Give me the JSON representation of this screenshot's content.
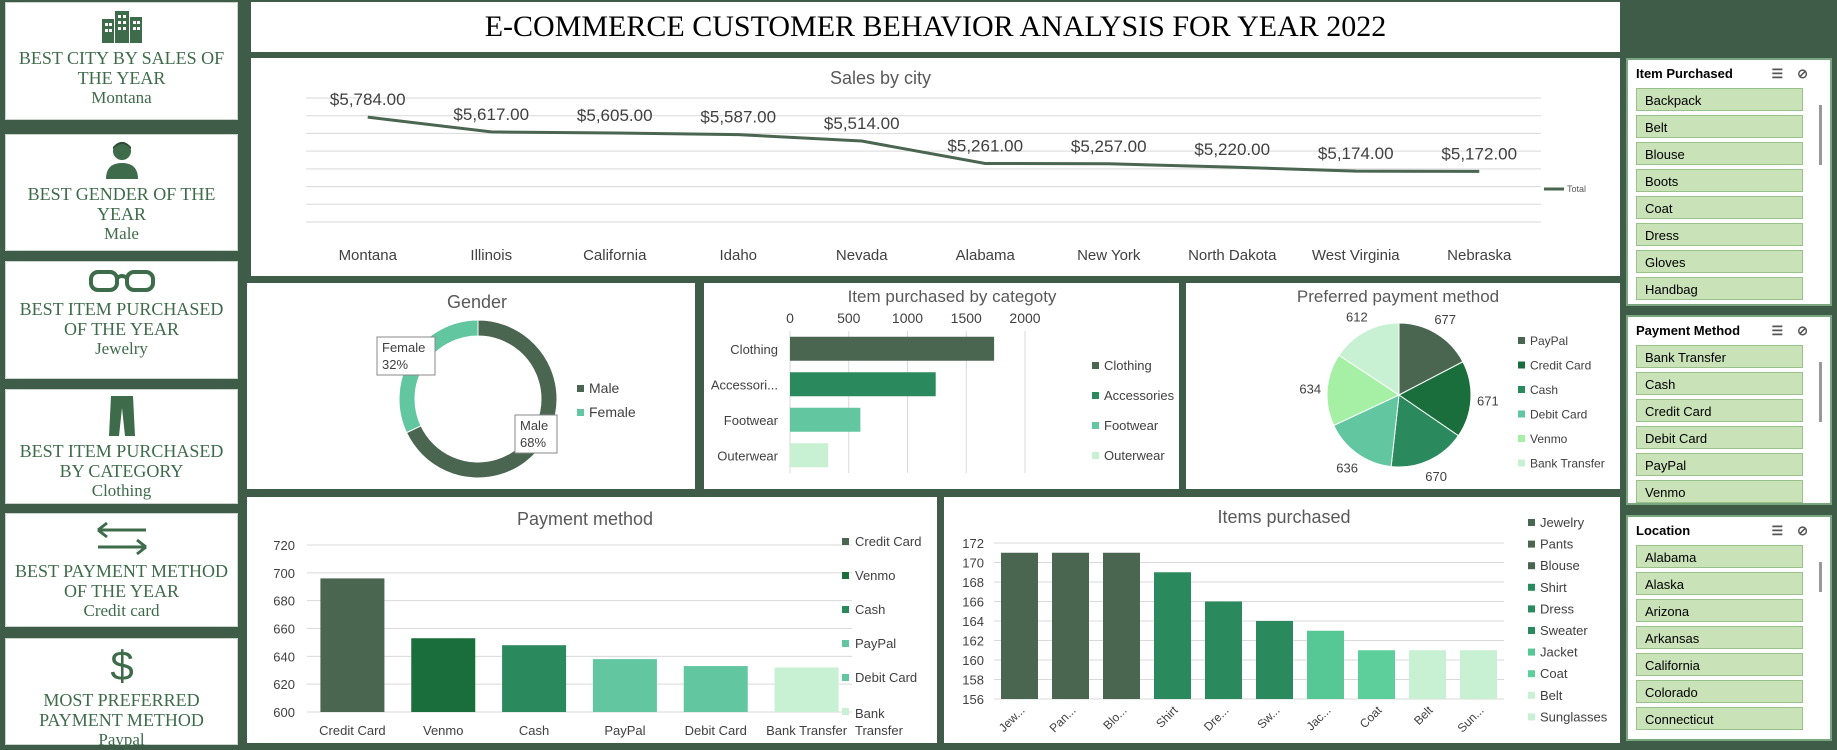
{
  "title": "E-COMMERCE CUSTOMER BEHAVIOR ANALYSIS FOR YEAR 2022",
  "kpis": [
    {
      "label": "BEST CITY BY SALES OF THE YEAR",
      "value": "Montana",
      "icon": "city-buildings-icon"
    },
    {
      "label": "BEST GENDER OF THE YEAR",
      "value": "Male",
      "icon": "person-icon"
    },
    {
      "label": "BEST ITEM PURCHASED OF THE YEAR",
      "value": "Jewelry",
      "icon": "glasses-icon"
    },
    {
      "label": "BEST ITEM PURCHASED BY CATEGORY",
      "value": "Clothing",
      "icon": "pants-icon"
    },
    {
      "label": "BEST PAYMENT METHOD OF THE YEAR",
      "value": "Credit card",
      "icon": "exchange-arrows-icon"
    },
    {
      "label": "MOST PREFERRED PAYMENT METHOD",
      "value": "Paypal",
      "icon": "dollar-icon"
    }
  ],
  "colors": {
    "dark": "#4a6650",
    "green": "#1a6e3b",
    "mid": "#2b8a5d",
    "teal": "#62c6a1",
    "light": "#a5f0a5",
    "pale": "#c8f0d2",
    "panel_border": "#3e5c48"
  },
  "chart_data": [
    {
      "id": "sales_by_city",
      "type": "line",
      "title": "Sales by city",
      "categories": [
        "Montana",
        "Illinois",
        "California",
        "Idaho",
        "Nevada",
        "Alabama",
        "New York",
        "North Dakota",
        "West Virginia",
        "Nebraska"
      ],
      "series": [
        {
          "name": "Total",
          "values": [
            5784,
            5617,
            5605,
            5587,
            5514,
            5261,
            5257,
            5220,
            5174,
            5172
          ]
        }
      ],
      "data_labels": [
        "$5,784.00",
        "$5,617.00",
        "$5,605.00",
        "$5,587.00",
        "$5,514.00",
        "$5,261.00",
        "$5,257.00",
        "$5,220.00",
        "$5,174.00",
        "$5,172.00"
      ],
      "ylim": [
        4600,
        6000
      ],
      "legend": "right",
      "grid": true
    },
    {
      "id": "gender",
      "type": "pie",
      "donut": true,
      "title": "Gender",
      "categories": [
        "Male",
        "Female"
      ],
      "values": [
        68,
        32
      ],
      "data_labels": [
        "Male\n68%",
        "Female\n32%"
      ],
      "legend": "right"
    },
    {
      "id": "item_by_category",
      "type": "bar",
      "orientation": "horizontal",
      "title": "Item purchased by categoty",
      "categories": [
        "Clothing",
        "Accessories",
        "Footwear",
        "Outerwear"
      ],
      "tick_labels": [
        "Clothing",
        "Accessori...",
        "Footwear",
        "Outerwear"
      ],
      "values": [
        1737,
        1240,
        599,
        324
      ],
      "xlim": [
        0,
        2000
      ],
      "xticks": [
        0,
        500,
        1000,
        1500,
        2000
      ],
      "legend": "right",
      "grid": true
    },
    {
      "id": "preferred_payment",
      "type": "pie",
      "title": "Preferred payment method",
      "categories": [
        "PayPal",
        "Credit Card",
        "Cash",
        "Debit Card",
        "Venmo",
        "Bank Transfer"
      ],
      "values": [
        677,
        671,
        670,
        636,
        634,
        612
      ],
      "legend": "right"
    },
    {
      "id": "payment_method",
      "type": "bar",
      "title": "Payment method",
      "categories": [
        "Credit Card",
        "Venmo",
        "Cash",
        "PayPal",
        "Debit Card",
        "Bank Transfer"
      ],
      "values": [
        696,
        653,
        648,
        638,
        633,
        632
      ],
      "ylim": [
        600,
        720
      ],
      "yticks": [
        600,
        620,
        640,
        660,
        680,
        700,
        720
      ],
      "legend": "right",
      "grid": true
    },
    {
      "id": "items_purchased",
      "type": "bar",
      "title": "Items purchased",
      "categories": [
        "Jewelry",
        "Pants",
        "Blouse",
        "Shirt",
        "Dress",
        "Sweater",
        "Jacket",
        "Coat",
        "Belt",
        "Sunglasses"
      ],
      "tick_labels": [
        "Jew...",
        "Pan...",
        "Blo...",
        "Shirt",
        "Dre...",
        "Sw...",
        "Jac...",
        "Coat",
        "Belt",
        "Sun..."
      ],
      "values": [
        171,
        171,
        171,
        169,
        166,
        164,
        163,
        161,
        161,
        161
      ],
      "ylim": [
        156,
        172
      ],
      "yticks": [
        156,
        158,
        160,
        162,
        164,
        166,
        168,
        170,
        172
      ],
      "legend": "right",
      "grid": true
    }
  ],
  "slicers": [
    {
      "title": "Item Purchased",
      "items": [
        "Backpack",
        "Belt",
        "Blouse",
        "Boots",
        "Coat",
        "Dress",
        "Gloves",
        "Handbag"
      ]
    },
    {
      "title": "Payment Method",
      "items": [
        "Bank Transfer",
        "Cash",
        "Credit Card",
        "Debit Card",
        "PayPal",
        "Venmo"
      ]
    },
    {
      "title": "Location",
      "items": [
        "Alabama",
        "Alaska",
        "Arizona",
        "Arkansas",
        "California",
        "Colorado",
        "Connecticut"
      ]
    }
  ]
}
